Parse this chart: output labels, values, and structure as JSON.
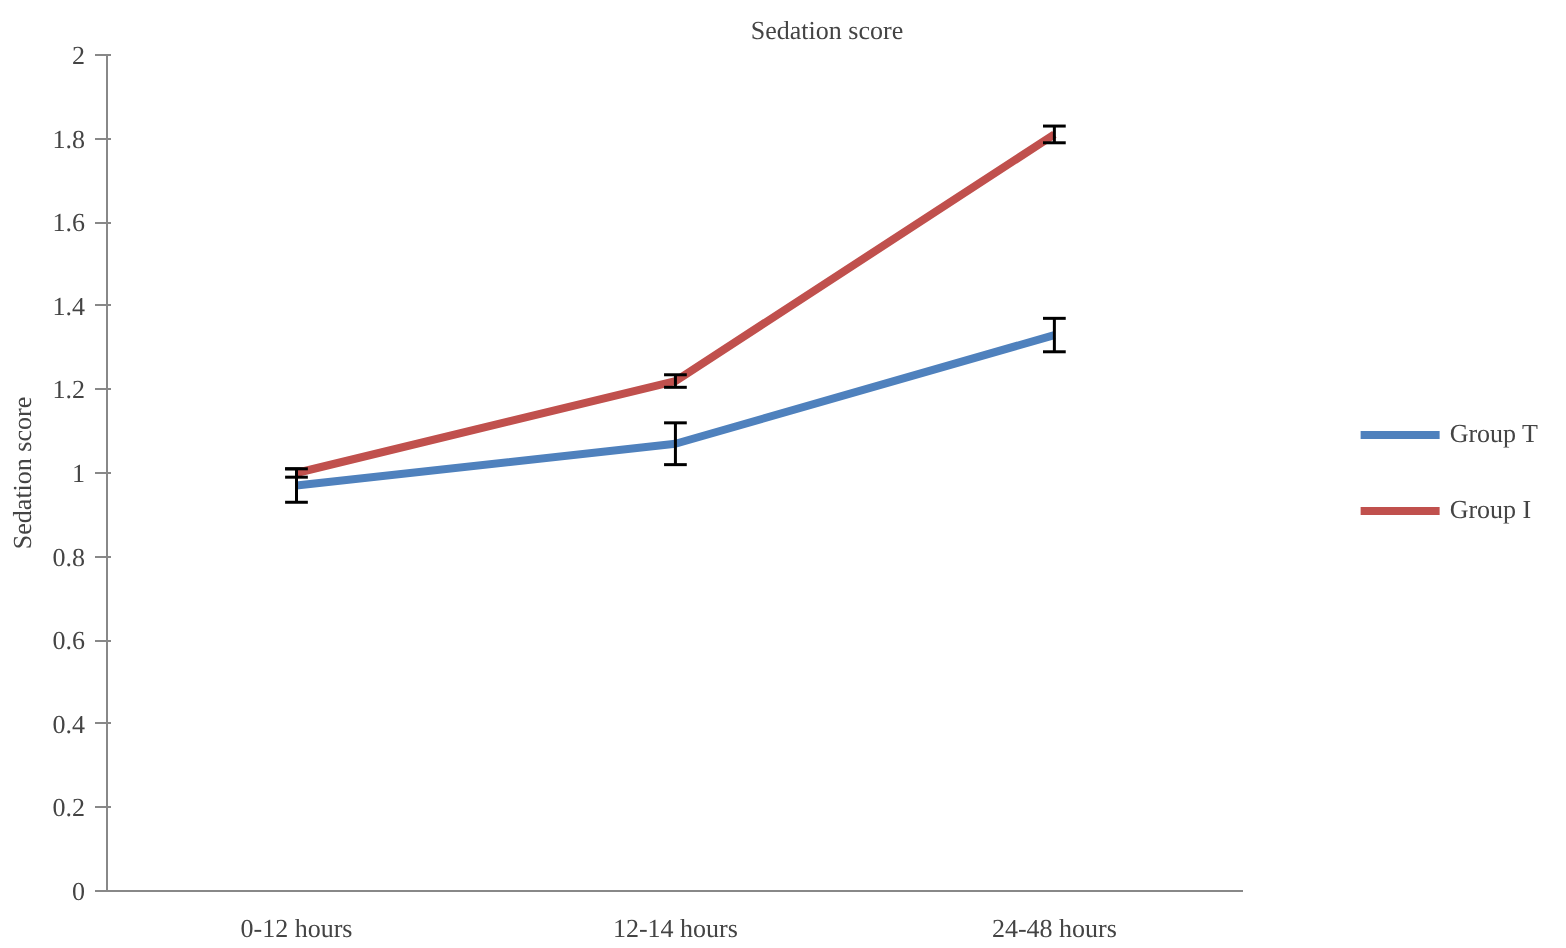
{
  "chart_data": {
    "type": "line",
    "title": "Sedation score",
    "ylabel": "Sedation score",
    "categories": [
      "0-12 hours",
      "12-14 hours",
      "24-48 hours"
    ],
    "series": [
      {
        "name": "Group T",
        "color": "#4f81bd",
        "values": [
          0.97,
          1.07,
          1.33
        ],
        "errors": [
          0.04,
          0.05,
          0.04
        ]
      },
      {
        "name": "Group I",
        "color": "#c0504d",
        "values": [
          1.0,
          1.22,
          1.81
        ],
        "errors": [
          0.01,
          0.015,
          0.02
        ]
      }
    ],
    "ylim": [
      0,
      2
    ],
    "yticks": [
      0,
      0.2,
      0.4,
      0.6,
      0.8,
      1,
      1.2,
      1.4,
      1.6,
      1.8,
      2
    ],
    "grid": false,
    "legend": "right",
    "marker": "none",
    "line_style": "solid"
  }
}
